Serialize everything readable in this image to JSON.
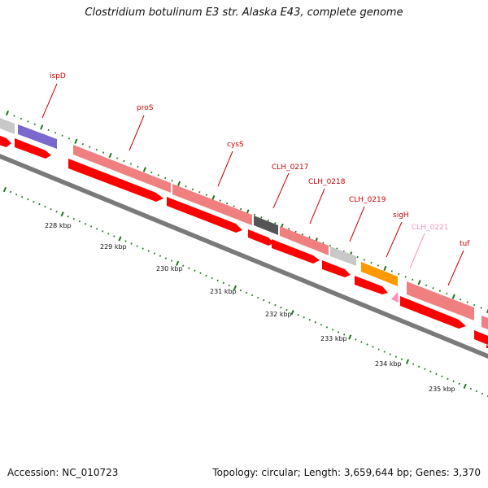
{
  "title": "Clostridium botulinum E3 str. Alaska E43, complete genome",
  "footer": {
    "accession": "Accession: NC_010723",
    "summary": "Topology: circular; Length: 3,659,644 bp; Genes: 3,370"
  },
  "colors": {
    "cds_forward": "#ff0000",
    "gene_feature": "#f08080",
    "gene_label": "#cc0000",
    "pseudo_label": "#ff8fbf",
    "tick": "#1a7a1a",
    "backbone": "#777777"
  },
  "gene_labels": [
    {
      "name": "ispD",
      "color": "#cc0000"
    },
    {
      "name": "proS",
      "color": "#cc0000"
    },
    {
      "name": "cysS",
      "color": "#cc0000"
    },
    {
      "name": "CLH_0217",
      "color": "#cc0000"
    },
    {
      "name": "CLH_0218",
      "color": "#cc0000"
    },
    {
      "name": "CLH_0219",
      "color": "#cc0000"
    },
    {
      "name": "sigH",
      "color": "#cc0000"
    },
    {
      "name": "CLH_0221",
      "color": "#ff8fbf"
    },
    {
      "name": "tuf",
      "color": "#cc0000"
    }
  ],
  "kbp_labels": [
    "228 kbp",
    "229 kbp",
    "230 kbp",
    "231 kbp",
    "232 kbp",
    "233 kbp",
    "234 kbp",
    "235 kbp"
  ]
}
